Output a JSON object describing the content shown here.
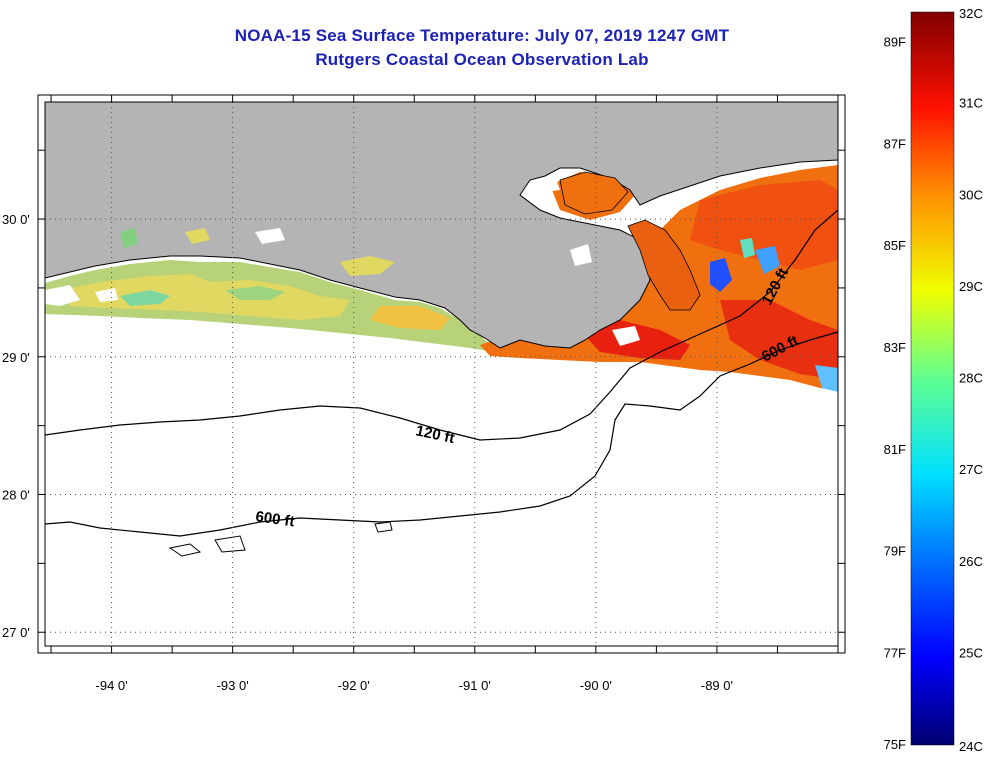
{
  "header": {
    "title": "NOAA-15 Sea Surface Temperature:  July 07, 2019 1247 GMT",
    "subtitle": "Rutgers Coastal Ocean Observation Lab"
  },
  "map": {
    "lon_range": [
      -94.55,
      -88.0
    ],
    "lat_range": [
      26.9,
      30.85
    ],
    "lon_ticks": [
      {
        "label": "-94 0'",
        "value": -94
      },
      {
        "label": "-93 0'",
        "value": -93
      },
      {
        "label": "-92 0'",
        "value": -92
      },
      {
        "label": "-91 0'",
        "value": -91
      },
      {
        "label": "-90 0'",
        "value": -90
      },
      {
        "label": "-89 0'",
        "value": -89
      }
    ],
    "lat_ticks": [
      {
        "label": "30 0'",
        "value": 30
      },
      {
        "label": "29 0'",
        "value": 29
      },
      {
        "label": "28 0'",
        "value": 28
      },
      {
        "label": "27 0'",
        "value": 27
      }
    ],
    "contour_labels": [
      "120 ft",
      "600 ft",
      "120 ft",
      "600 ft"
    ],
    "land_color": "#b4b4b4",
    "ocean_color": "#ffffff"
  },
  "colorbar": {
    "celsius_labels": [
      "32C",
      "31C",
      "30C",
      "29C",
      "28C",
      "27C",
      "26C",
      "25C",
      "24C"
    ],
    "fahrenheit_labels": [
      "89F",
      "87F",
      "85F",
      "83F",
      "81F",
      "79F",
      "77F",
      "75F"
    ],
    "celsius_range": [
      24,
      32
    ],
    "colors": [
      "#000080",
      "#0000ff",
      "#0080ff",
      "#00ffff",
      "#80ff80",
      "#ffff00",
      "#ff8000",
      "#ff0000",
      "#800000"
    ]
  }
}
